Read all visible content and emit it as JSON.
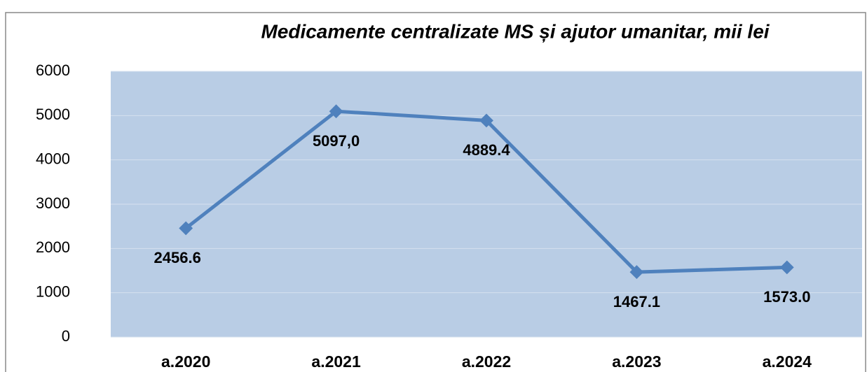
{
  "chart_data": {
    "type": "line",
    "title": "Medicamente centralizate MS și ajutor umanitar, mii lei",
    "categories": [
      "a.2020",
      "a.2021",
      "a.2022",
      "a.2023",
      "a.2024"
    ],
    "series": [
      {
        "name": "Medicamente centralizate MS și ajutor umanitar",
        "color": "#4f81bd",
        "values": [
          2456.6,
          5097.0,
          4889.4,
          1467.1,
          1573.0
        ],
        "value_labels": [
          "2456.6",
          "5097,0",
          "4889.4",
          "1467.1",
          "1573.0"
        ]
      }
    ],
    "ylim": [
      0,
      6000
    ],
    "yticks": [
      0,
      1000,
      2000,
      3000,
      4000,
      5000,
      6000
    ],
    "grid": true
  }
}
